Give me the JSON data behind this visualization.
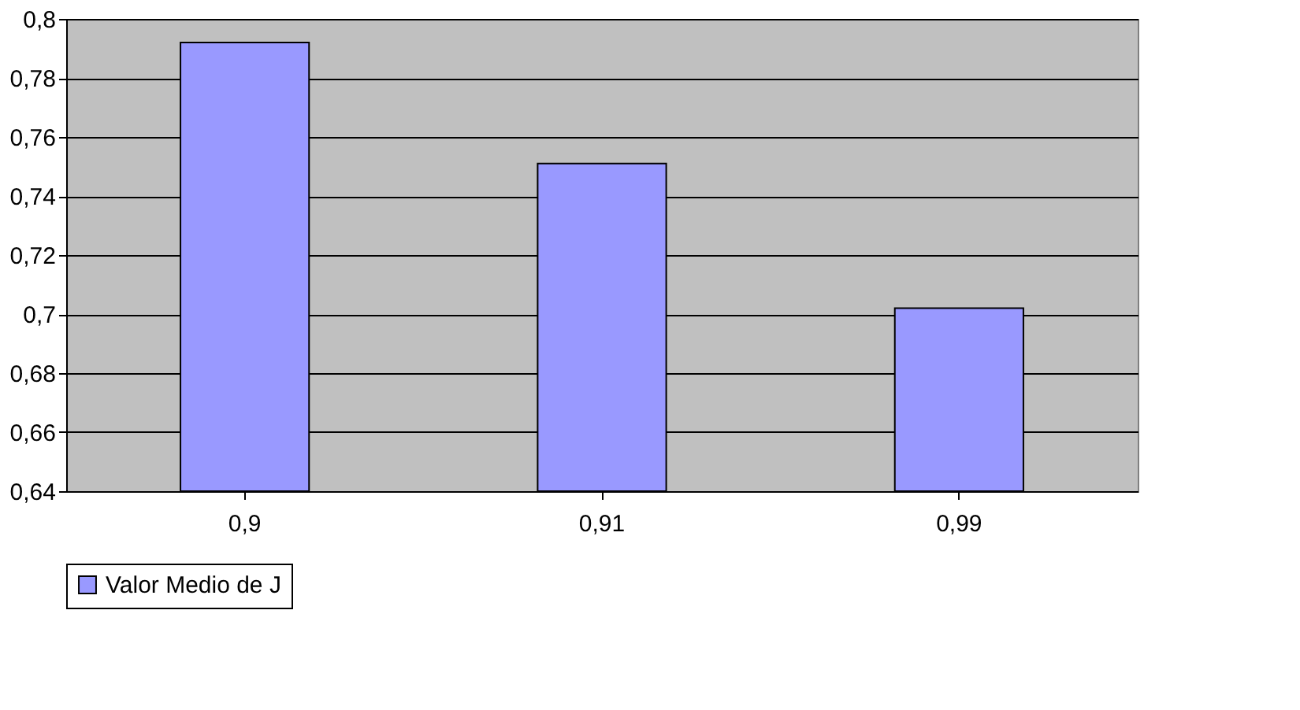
{
  "chart_data": {
    "type": "bar",
    "categories": [
      "0,9",
      "0,91",
      "0,99"
    ],
    "series": [
      {
        "name": "Valor Medio de J",
        "color": "#9999ff",
        "values": [
          0.792,
          0.751,
          0.702
        ]
      }
    ],
    "ylim": [
      0.64,
      0.8
    ],
    "yticks": [
      {
        "value": 0.64,
        "label": "0,64"
      },
      {
        "value": 0.66,
        "label": "0,66"
      },
      {
        "value": 0.68,
        "label": "0,68"
      },
      {
        "value": 0.7,
        "label": "0,7"
      },
      {
        "value": 0.72,
        "label": "0,72"
      },
      {
        "value": 0.74,
        "label": "0,74"
      },
      {
        "value": 0.76,
        "label": "0,76"
      },
      {
        "value": 0.78,
        "label": "0,78"
      },
      {
        "value": 0.8,
        "label": "0,8"
      }
    ],
    "grid": "y",
    "legend": "bottom"
  }
}
